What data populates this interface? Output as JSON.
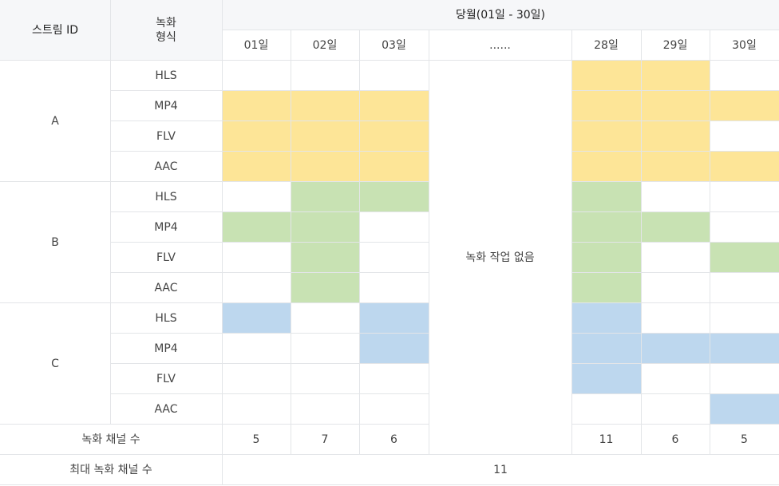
{
  "colors": {
    "stream_A": "#fde597",
    "stream_B": "#c8e2b3",
    "stream_C": "#bdd7ee",
    "header_bg": "#f6f7f9",
    "border": "#e3e5e8"
  },
  "header": {
    "stream_id": "스트림 ID",
    "format": "녹화\n형식",
    "month": "당월(01일 - 30일)",
    "days": [
      "01일",
      "02일",
      "03일",
      "......",
      "28일",
      "29일",
      "30일"
    ]
  },
  "streams": [
    {
      "id": "A",
      "color_key": "stream_A",
      "rows": [
        {
          "format": "HLS",
          "recorded": [
            false,
            false,
            false,
            true,
            true,
            false
          ]
        },
        {
          "format": "MP4",
          "recorded": [
            true,
            true,
            true,
            true,
            true,
            true
          ]
        },
        {
          "format": "FLV",
          "recorded": [
            true,
            true,
            true,
            true,
            true,
            false
          ]
        },
        {
          "format": "AAC",
          "recorded": [
            true,
            true,
            true,
            true,
            true,
            true
          ]
        }
      ]
    },
    {
      "id": "B",
      "color_key": "stream_B",
      "rows": [
        {
          "format": "HLS",
          "recorded": [
            false,
            true,
            true,
            true,
            false,
            false
          ]
        },
        {
          "format": "MP4",
          "recorded": [
            true,
            true,
            false,
            true,
            true,
            false
          ]
        },
        {
          "format": "FLV",
          "recorded": [
            false,
            true,
            false,
            true,
            false,
            true
          ]
        },
        {
          "format": "AAC",
          "recorded": [
            false,
            true,
            false,
            true,
            false,
            false
          ]
        }
      ]
    },
    {
      "id": "C",
      "color_key": "stream_C",
      "rows": [
        {
          "format": "HLS",
          "recorded": [
            true,
            false,
            true,
            true,
            false,
            false
          ]
        },
        {
          "format": "MP4",
          "recorded": [
            false,
            false,
            true,
            true,
            true,
            true
          ]
        },
        {
          "format": "FLV",
          "recorded": [
            false,
            false,
            false,
            true,
            false,
            false
          ]
        },
        {
          "format": "AAC",
          "recorded": [
            false,
            false,
            false,
            false,
            false,
            true
          ]
        }
      ]
    }
  ],
  "ellipsis_note": "녹화 작업 없음",
  "channel_count": {
    "label": "녹화 채널 수",
    "values": [
      "5",
      "7",
      "6",
      "11",
      "6",
      "5"
    ]
  },
  "max_channel": {
    "label": "최대 녹화 채널 수",
    "value": "11"
  }
}
